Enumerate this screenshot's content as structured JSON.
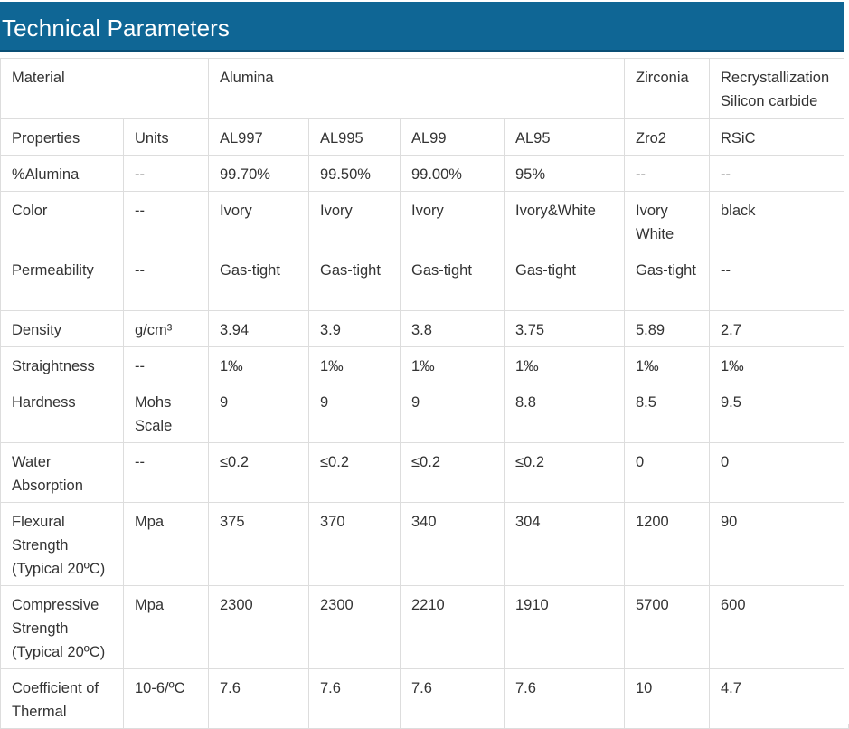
{
  "header": {
    "title": "Technical Parameters"
  },
  "table": {
    "rows": [
      {
        "cells": [
          "Material",
          "",
          "Alumina",
          "",
          "",
          "",
          "Zirconia",
          "Recrystallization Silicon carbide"
        ]
      },
      {
        "cells": [
          "Properties",
          "Units",
          "AL997",
          "AL995",
          "AL99",
          "AL95",
          "Zro2",
          "RSiC"
        ]
      },
      {
        "cells": [
          "%Alumina",
          "--",
          "99.70%",
          "99.50%",
          "99.00%",
          "95%",
          "--",
          "--"
        ]
      },
      {
        "cells": [
          "Color",
          "--",
          "Ivory",
          "Ivory",
          "Ivory",
          "Ivory&White",
          "Ivory White",
          "black"
        ]
      },
      {
        "cells": [
          "Permeability",
          "--",
          "Gas-tight",
          "Gas-tight",
          "Gas-tight",
          "Gas-tight",
          "Gas-tight",
          "--"
        ]
      },
      {
        "cells": [
          "Density",
          "g/cm³",
          "3.94",
          "3.9",
          "3.8",
          "3.75",
          "5.89",
          "2.7"
        ]
      },
      {
        "cells": [
          "Straightness",
          "--",
          "1‰",
          "1‰",
          "1‰",
          "1‰",
          "1‰",
          "1‰"
        ]
      },
      {
        "cells": [
          "Hardness",
          "Mohs Scale",
          "9",
          "9",
          "9",
          "8.8",
          "8.5",
          "9.5"
        ]
      },
      {
        "cells": [
          "Water Absorption",
          "--",
          "≤0.2",
          "≤0.2",
          "≤0.2",
          "≤0.2",
          "0",
          "0"
        ]
      },
      {
        "cells": [
          "Flexural Strength (Typical 20ºC)",
          "Mpa",
          "375",
          "370",
          "340",
          "304",
          "1200",
          "90"
        ]
      },
      {
        "cells": [
          "Compressive Strength (Typical 20ºC)",
          "Mpa",
          "2300",
          "2300",
          "2210",
          "1910",
          "5700",
          "600"
        ]
      },
      {
        "cells": [
          "Coefficient of Thermal",
          "10-6/ºC",
          "7.6",
          "7.6",
          "7.6",
          "7.6",
          "10",
          "4.7"
        ]
      }
    ]
  }
}
